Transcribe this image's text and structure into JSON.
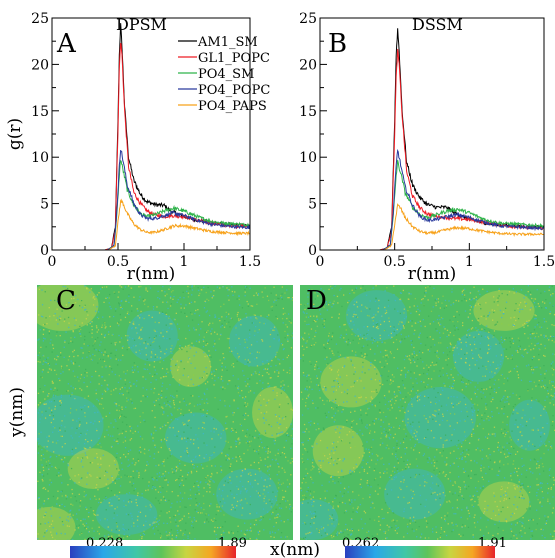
{
  "panels": {
    "a": {
      "letter": "A",
      "title": "DPSM"
    },
    "b": {
      "letter": "B",
      "title": "DSSM"
    },
    "c": {
      "letter": "C",
      "cbar_min": "0.228",
      "cbar_max": "1.89"
    },
    "d": {
      "letter": "D",
      "cbar_min": "0.262",
      "cbar_max": "1.91"
    }
  },
  "maps": {
    "xlabel": "x(nm)",
    "ylabel": "y(nm)"
  },
  "colors": {
    "AM1_SM": "#000000",
    "GL1_POPC": "#ee1c24",
    "PO4_SM": "#2fb34a",
    "PO4_POPC": "#2a3a9e",
    "PO4_PAPS": "#f7a21b",
    "map_base": "#4fbe63",
    "map_cyan": "#3fb6c8",
    "map_yellow": "#c8d54a"
  },
  "chart_data": [
    {
      "type": "line",
      "panel": "A",
      "title": "DPSM",
      "xlabel": "r(nm)",
      "ylabel": "g(r)",
      "xlim": [
        0,
        1.5
      ],
      "ylim": [
        0,
        25
      ],
      "xticks": [
        "0",
        "0.5",
        "1",
        "1.5"
      ],
      "yticks": [
        "0",
        "5",
        "10",
        "15",
        "20",
        "25"
      ],
      "legend": "top-right",
      "series": [
        {
          "name": "AM1_SM",
          "color": "#000000",
          "points": [
            [
              0,
              0
            ],
            [
              0.4,
              0
            ],
            [
              0.45,
              0.2
            ],
            [
              0.48,
              2.5
            ],
            [
              0.5,
              14
            ],
            [
              0.51,
              21
            ],
            [
              0.52,
              24.3
            ],
            [
              0.53,
              22
            ],
            [
              0.55,
              15.5
            ],
            [
              0.58,
              10
            ],
            [
              0.62,
              7.5
            ],
            [
              0.67,
              6
            ],
            [
              0.72,
              5.2
            ],
            [
              0.78,
              4.9
            ],
            [
              0.85,
              4.8
            ],
            [
              0.9,
              4.2
            ],
            [
              1.0,
              3.6
            ],
            [
              1.1,
              3.2
            ],
            [
              1.2,
              3.0
            ],
            [
              1.3,
              2.8
            ],
            [
              1.4,
              2.7
            ],
            [
              1.5,
              2.6
            ]
          ]
        },
        {
          "name": "GL1_POPC",
          "color": "#ee1c24",
          "points": [
            [
              0,
              0
            ],
            [
              0.4,
              0
            ],
            [
              0.45,
              0.2
            ],
            [
              0.48,
              2.2
            ],
            [
              0.5,
              13
            ],
            [
              0.51,
              19.5
            ],
            [
              0.52,
              22.5
            ],
            [
              0.53,
              21
            ],
            [
              0.55,
              15
            ],
            [
              0.58,
              9
            ],
            [
              0.62,
              6.2
            ],
            [
              0.67,
              5
            ],
            [
              0.72,
              4.2
            ],
            [
              0.78,
              3.8
            ],
            [
              0.85,
              3.6
            ],
            [
              0.9,
              3.7
            ],
            [
              1.0,
              3.6
            ],
            [
              1.1,
              3.2
            ],
            [
              1.2,
              2.9
            ],
            [
              1.3,
              2.7
            ],
            [
              1.4,
              2.6
            ],
            [
              1.5,
              2.5
            ]
          ]
        },
        {
          "name": "PO4_SM",
          "color": "#2fb34a",
          "points": [
            [
              0,
              0
            ],
            [
              0.42,
              0
            ],
            [
              0.47,
              0.5
            ],
            [
              0.49,
              3.5
            ],
            [
              0.51,
              8
            ],
            [
              0.52,
              9.8
            ],
            [
              0.54,
              8.5
            ],
            [
              0.57,
              6.5
            ],
            [
              0.62,
              4.8
            ],
            [
              0.67,
              3.9
            ],
            [
              0.72,
              3.6
            ],
            [
              0.78,
              3.8
            ],
            [
              0.85,
              4.2
            ],
            [
              0.92,
              4.5
            ],
            [
              1.0,
              4.2
            ],
            [
              1.1,
              3.6
            ],
            [
              1.2,
              3.1
            ],
            [
              1.3,
              2.9
            ],
            [
              1.4,
              2.8
            ],
            [
              1.5,
              2.7
            ]
          ]
        },
        {
          "name": "PO4_POPC",
          "color": "#2a3a9e",
          "points": [
            [
              0,
              0
            ],
            [
              0.42,
              0
            ],
            [
              0.47,
              0.5
            ],
            [
              0.49,
              4
            ],
            [
              0.51,
              9
            ],
            [
              0.52,
              11
            ],
            [
              0.54,
              9.5
            ],
            [
              0.57,
              7
            ],
            [
              0.62,
              5.0
            ],
            [
              0.67,
              3.8
            ],
            [
              0.72,
              3.4
            ],
            [
              0.78,
              3.4
            ],
            [
              0.85,
              3.7
            ],
            [
              0.92,
              4.0
            ],
            [
              1.0,
              3.7
            ],
            [
              1.1,
              3.2
            ],
            [
              1.2,
              2.8
            ],
            [
              1.3,
              2.6
            ],
            [
              1.4,
              2.5
            ],
            [
              1.5,
              2.4
            ]
          ]
        },
        {
          "name": "PO4_PAPS",
          "color": "#f7a21b",
          "points": [
            [
              0,
              0
            ],
            [
              0.43,
              0
            ],
            [
              0.48,
              0.5
            ],
            [
              0.5,
              3
            ],
            [
              0.52,
              5.3
            ],
            [
              0.54,
              5.0
            ],
            [
              0.57,
              3.9
            ],
            [
              0.62,
              2.8
            ],
            [
              0.67,
              2.2
            ],
            [
              0.72,
              1.9
            ],
            [
              0.78,
              1.9
            ],
            [
              0.85,
              2.2
            ],
            [
              0.92,
              2.6
            ],
            [
              1.0,
              2.6
            ],
            [
              1.1,
              2.3
            ],
            [
              1.2,
              2.0
            ],
            [
              1.3,
              1.9
            ],
            [
              1.4,
              1.8
            ],
            [
              1.5,
              1.8
            ]
          ]
        }
      ]
    },
    {
      "type": "line",
      "panel": "B",
      "title": "DSSM",
      "xlabel": "r(nm)",
      "ylabel": "",
      "xlim": [
        0,
        1.5
      ],
      "ylim": [
        0,
        25
      ],
      "xticks": [
        "0",
        "0.5",
        "1",
        "1.5"
      ],
      "yticks": [
        "0",
        "5",
        "10",
        "15",
        "20",
        "25"
      ],
      "series": [
        {
          "name": "AM1_SM",
          "color": "#000000",
          "points": [
            [
              0,
              0
            ],
            [
              0.4,
              0
            ],
            [
              0.45,
              0.2
            ],
            [
              0.48,
              2.5
            ],
            [
              0.5,
              14
            ],
            [
              0.51,
              21
            ],
            [
              0.52,
              23.8
            ],
            [
              0.53,
              21.5
            ],
            [
              0.55,
              15
            ],
            [
              0.58,
              9.5
            ],
            [
              0.62,
              7
            ],
            [
              0.67,
              5.6
            ],
            [
              0.72,
              4.9
            ],
            [
              0.78,
              4.6
            ],
            [
              0.85,
              4.6
            ],
            [
              0.9,
              4.0
            ],
            [
              1.0,
              3.3
            ],
            [
              1.1,
              2.9
            ],
            [
              1.2,
              2.7
            ],
            [
              1.3,
              2.6
            ],
            [
              1.4,
              2.5
            ],
            [
              1.5,
              2.5
            ]
          ]
        },
        {
          "name": "GL1_POPC",
          "color": "#ee1c24",
          "points": [
            [
              0,
              0
            ],
            [
              0.4,
              0
            ],
            [
              0.45,
              0.2
            ],
            [
              0.48,
              2.2
            ],
            [
              0.5,
              12.5
            ],
            [
              0.51,
              18.5
            ],
            [
              0.52,
              21.5
            ],
            [
              0.53,
              20
            ],
            [
              0.55,
              14.5
            ],
            [
              0.58,
              8.5
            ],
            [
              0.62,
              5.8
            ],
            [
              0.67,
              4.5
            ],
            [
              0.72,
              3.9
            ],
            [
              0.78,
              3.6
            ],
            [
              0.85,
              3.5
            ],
            [
              0.9,
              3.4
            ],
            [
              1.0,
              3.3
            ],
            [
              1.1,
              3.0
            ],
            [
              1.2,
              2.7
            ],
            [
              1.3,
              2.5
            ],
            [
              1.4,
              2.4
            ],
            [
              1.5,
              2.3
            ]
          ]
        },
        {
          "name": "PO4_SM",
          "color": "#2fb34a",
          "points": [
            [
              0,
              0
            ],
            [
              0.42,
              0
            ],
            [
              0.47,
              0.5
            ],
            [
              0.49,
              3.5
            ],
            [
              0.51,
              8
            ],
            [
              0.52,
              9.5
            ],
            [
              0.54,
              8.3
            ],
            [
              0.57,
              6.2
            ],
            [
              0.62,
              4.6
            ],
            [
              0.67,
              3.8
            ],
            [
              0.72,
              3.5
            ],
            [
              0.78,
              3.8
            ],
            [
              0.85,
              4.2
            ],
            [
              0.92,
              4.4
            ],
            [
              1.0,
              4.0
            ],
            [
              1.1,
              3.3
            ],
            [
              1.2,
              2.9
            ],
            [
              1.3,
              2.8
            ],
            [
              1.4,
              2.7
            ],
            [
              1.5,
              2.6
            ]
          ]
        },
        {
          "name": "PO4_POPC",
          "color": "#2a3a9e",
          "points": [
            [
              0,
              0
            ],
            [
              0.42,
              0
            ],
            [
              0.47,
              0.5
            ],
            [
              0.49,
              4
            ],
            [
              0.51,
              9
            ],
            [
              0.52,
              10.8
            ],
            [
              0.54,
              9.2
            ],
            [
              0.57,
              6.8
            ],
            [
              0.62,
              4.8
            ],
            [
              0.67,
              3.6
            ],
            [
              0.72,
              3.2
            ],
            [
              0.78,
              3.3
            ],
            [
              0.85,
              3.6
            ],
            [
              0.92,
              3.8
            ],
            [
              1.0,
              3.5
            ],
            [
              1.1,
              3.0
            ],
            [
              1.2,
              2.6
            ],
            [
              1.3,
              2.5
            ],
            [
              1.4,
              2.4
            ],
            [
              1.5,
              2.3
            ]
          ]
        },
        {
          "name": "PO4_PAPS",
          "color": "#f7a21b",
          "points": [
            [
              0,
              0
            ],
            [
              0.43,
              0
            ],
            [
              0.48,
              0.5
            ],
            [
              0.5,
              2.8
            ],
            [
              0.52,
              4.8
            ],
            [
              0.54,
              4.5
            ],
            [
              0.57,
              3.5
            ],
            [
              0.62,
              2.5
            ],
            [
              0.67,
              2.0
            ],
            [
              0.72,
              1.8
            ],
            [
              0.78,
              1.9
            ],
            [
              0.85,
              2.2
            ],
            [
              0.92,
              2.4
            ],
            [
              1.0,
              2.3
            ],
            [
              1.1,
              2.0
            ],
            [
              1.2,
              1.8
            ],
            [
              1.3,
              1.7
            ],
            [
              1.4,
              1.7
            ],
            [
              1.5,
              1.7
            ]
          ]
        }
      ]
    }
  ]
}
